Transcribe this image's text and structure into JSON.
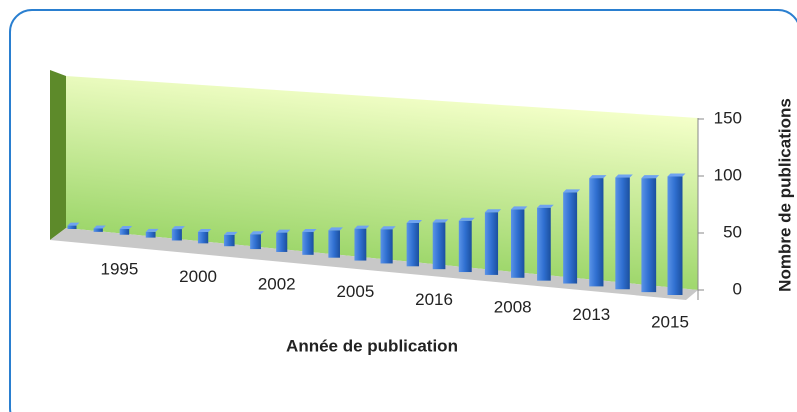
{
  "chart_data": {
    "type": "bar",
    "x_label": "Année de publication",
    "y_label": "Nombre de publications",
    "categories": [
      null,
      null,
      "1995",
      null,
      null,
      "2000",
      null,
      null,
      "2002",
      null,
      null,
      "2005",
      null,
      null,
      "2016",
      null,
      null,
      "2008",
      null,
      null,
      "2013",
      null,
      null,
      "2015"
    ],
    "values": [
      3,
      3,
      5,
      5,
      10,
      10,
      10,
      13,
      17,
      20,
      24,
      28,
      30,
      38,
      41,
      45,
      55,
      60,
      64,
      80,
      95,
      98,
      100,
      104
    ],
    "color": "#2f6fd0",
    "ylim": [
      0,
      150
    ],
    "yticks": [
      0,
      50,
      100,
      150
    ],
    "grid": false
  }
}
